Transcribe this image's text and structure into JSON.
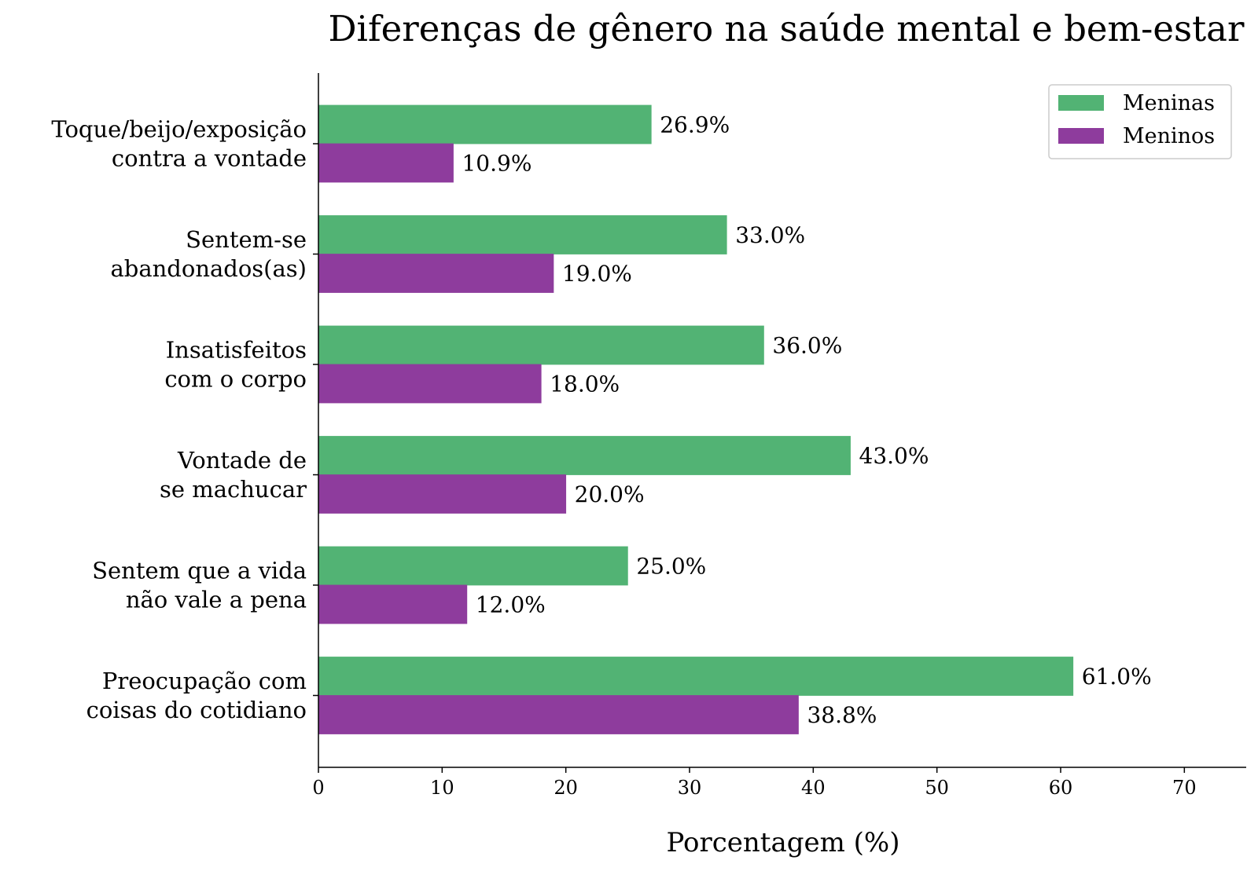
{
  "chart_data": {
    "type": "bar",
    "orientation": "horizontal",
    "title": "Diferenças de gênero na saúde mental e bem-estar",
    "xlabel": "Porcentagem (%)",
    "ylabel": "",
    "xlim": [
      0,
      75
    ],
    "xticks": [
      0,
      10,
      20,
      30,
      40,
      50,
      60,
      70
    ],
    "grid": false,
    "legend_position": "top-right",
    "categories": [
      [
        "Toque/beijo/exposição",
        "contra a vontade"
      ],
      [
        "Sentem-se",
        "abandonados(as)"
      ],
      [
        "Insatisfeitos",
        "com o corpo"
      ],
      [
        "Vontade de",
        "se machucar"
      ],
      [
        "Sentem que a vida",
        "não vale a pena"
      ],
      [
        "Preocupação com",
        "coisas do cotidiano"
      ]
    ],
    "series": [
      {
        "name": "Meninas",
        "color": "#52b374",
        "values": [
          26.9,
          33.0,
          36.0,
          43.0,
          25.0,
          61.0
        ]
      },
      {
        "name": "Meninos",
        "color": "#8e3c9d",
        "values": [
          10.9,
          19.0,
          18.0,
          20.0,
          12.0,
          38.8
        ]
      }
    ]
  }
}
